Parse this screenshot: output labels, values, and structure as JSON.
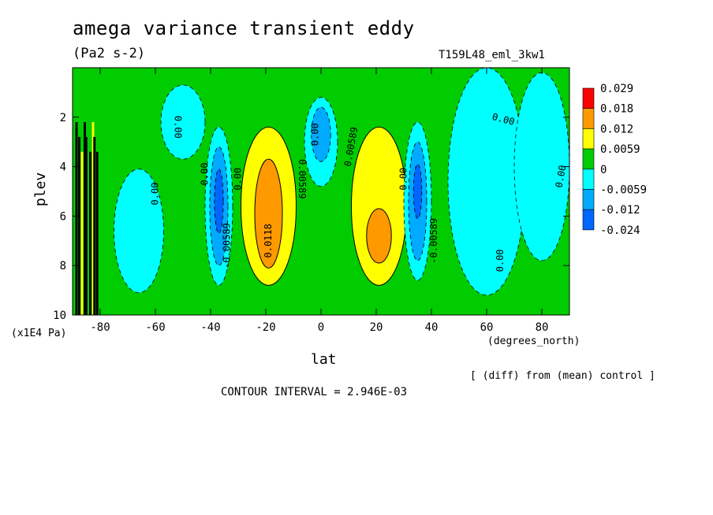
{
  "chart_data": {
    "type": "heatmap",
    "title": "amega variance transient eddy",
    "units": "(Pa2 s-2)",
    "run_label": "T159L48_eml_3kw1",
    "xlabel": "lat",
    "x_units": "(degrees_north)",
    "ylabel": "plev",
    "y_units": "(x1E4 Pa)",
    "note": "[ (diff) from (mean) control ]",
    "contour_interval": "CONTOUR INTERVAL = 2.946E-03",
    "xlim": [
      -90,
      90
    ],
    "ylim": [
      10,
      0
    ],
    "x_ticks": [
      "-80",
      "-60",
      "-40",
      "-20",
      "0",
      "20",
      "40",
      "60",
      "80"
    ],
    "x_tick_values": [
      -80,
      -60,
      -40,
      -20,
      0,
      20,
      40,
      60,
      80
    ],
    "y_ticks": [
      "2",
      "4",
      "6",
      "8",
      "10"
    ],
    "y_tick_values": [
      2,
      4,
      6,
      8,
      10
    ],
    "legend": {
      "labels": [
        "0.029",
        "0.018",
        "0.012",
        "0.0059",
        "0",
        "-0.0059",
        "-0.012",
        "-0.024"
      ],
      "colors": [
        "#ff0000",
        "#ff9900",
        "#ffff00",
        "#00cc00",
        "#00ffff",
        "#00aaff",
        "#0066ff"
      ]
    },
    "regions": [
      {
        "level": 0.0059,
        "lat_center": -19,
        "lev_center": 5.6,
        "lat_half": 10,
        "lev_half": 3.2
      },
      {
        "level": 0.012,
        "lat_center": -19,
        "lev_center": 5.9,
        "lat_half": 5,
        "lev_half": 2.2
      },
      {
        "level": 0.0059,
        "lat_center": 21,
        "lev_center": 5.6,
        "lat_half": 10,
        "lev_half": 3.2
      },
      {
        "level": 0.012,
        "lat_center": 21,
        "lev_center": 6.8,
        "lat_half": 4.5,
        "lev_half": 1.1
      },
      {
        "level": -0.0059,
        "lat_center": 0,
        "lev_center": 3.0,
        "lat_half": 6,
        "lev_half": 1.8
      },
      {
        "level": -0.012,
        "lat_center": 0,
        "lev_center": 2.7,
        "lat_half": 3.5,
        "lev_half": 1.1
      },
      {
        "level": -0.0059,
        "lat_center": -37,
        "lev_center": 5.6,
        "lat_half": 5,
        "lev_half": 3.2
      },
      {
        "level": -0.012,
        "lat_center": -37,
        "lev_center": 5.6,
        "lat_half": 3.3,
        "lev_half": 2.4
      },
      {
        "level": -0.024,
        "lat_center": -37,
        "lev_center": 5.4,
        "lat_half": 1.6,
        "lev_half": 1.3
      },
      {
        "level": -0.0059,
        "lat_center": 35,
        "lev_center": 5.4,
        "lat_half": 5,
        "lev_half": 3.2
      },
      {
        "level": -0.012,
        "lat_center": 35,
        "lev_center": 5.4,
        "lat_half": 3.3,
        "lev_half": 2.4
      },
      {
        "level": -0.024,
        "lat_center": 35,
        "lev_center": 5.0,
        "lat_half": 1.5,
        "lev_half": 1.1
      },
      {
        "level": -0.0059,
        "lat_center": -66,
        "lev_center": 6.6,
        "lat_half": 9,
        "lev_half": 2.5
      },
      {
        "level": -0.0059,
        "lat_center": -50,
        "lev_center": 2.2,
        "lat_half": 8,
        "lev_half": 1.5
      },
      {
        "level": -0.0059,
        "lat_center": 60,
        "lev_center": 4.6,
        "lat_half": 14,
        "lev_half": 4.6
      },
      {
        "level": -0.0059,
        "lat_center": 80,
        "lev_center": 4.0,
        "lat_half": 10,
        "lev_half": 3.8
      }
    ],
    "contour_labels": [
      {
        "text": "0.00",
        "lat": -52,
        "lev": 2.4,
        "rotate": 90
      },
      {
        "text": "0.00",
        "lat": -42,
        "lev": 4.3,
        "rotate": -90
      },
      {
        "text": "0.00",
        "lat": -60,
        "lev": 5.1,
        "rotate": -90
      },
      {
        "text": "0.00",
        "lat": -30,
        "lev": 4.5,
        "rotate": -90
      },
      {
        "text": "-0.00589",
        "lat": -34,
        "lev": 7.2,
        "rotate": -90
      },
      {
        "text": "0.0118",
        "lat": -19,
        "lev": 7.0,
        "rotate": -90
      },
      {
        "text": "0.00589",
        "lat": -7,
        "lev": 4.5,
        "rotate": 90
      },
      {
        "text": "0.00",
        "lat": -2,
        "lev": 2.7,
        "rotate": -90
      },
      {
        "text": "0.00589",
        "lat": 11,
        "lev": 3.2,
        "rotate": -80
      },
      {
        "text": "0.00",
        "lat": 30,
        "lev": 4.5,
        "rotate": -90
      },
      {
        "text": "-0.00589",
        "lat": 41,
        "lev": 7.0,
        "rotate": -90
      },
      {
        "text": "0.00",
        "lat": 66,
        "lev": 2.1,
        "rotate": 15
      },
      {
        "text": "0.00",
        "lat": 87,
        "lev": 4.4,
        "rotate": -80
      },
      {
        "text": "0.00",
        "lat": 65,
        "lev": 7.8,
        "rotate": -90
      }
    ]
  }
}
